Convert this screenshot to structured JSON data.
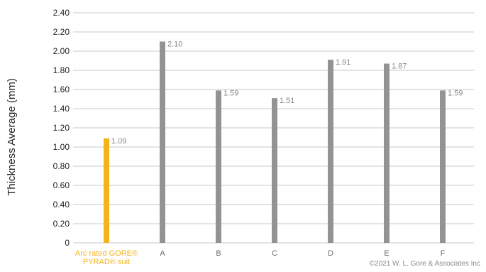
{
  "chart_data": {
    "type": "bar",
    "title": "",
    "ylabel": "Thickness Average (mm)",
    "xlabel": "",
    "ylim": [
      0,
      2.4
    ],
    "yticks": [
      "0",
      "0.20",
      "0.40",
      "0.60",
      "0.80",
      "1.00",
      "1.20",
      "1.40",
      "1.60",
      "1.80",
      "2.00",
      "2.20",
      "2.40"
    ],
    "grid": "horizontal",
    "categories": [
      [
        "Arc rated GORE®",
        "PYRAD® suit"
      ],
      [
        "A"
      ],
      [
        "B"
      ],
      [
        "C"
      ],
      [
        "D"
      ],
      [
        "E"
      ],
      [
        "F"
      ]
    ],
    "values": [
      1.09,
      2.1,
      1.59,
      1.51,
      1.91,
      1.87,
      1.59
    ],
    "value_labels": [
      "1.09",
      "2.10",
      "1.59",
      "1.51",
      "1.91",
      "1.87",
      "1.59"
    ],
    "colors": [
      "#f5b21a",
      "#939393",
      "#939393",
      "#939393",
      "#939393",
      "#939393",
      "#939393"
    ]
  },
  "colors": {
    "highlight": "#f5b21a",
    "bar": "#939393",
    "grid": "#c8c8c8"
  },
  "footer": {
    "copyright": "©2021 W. L. Gore & Associates Inc"
  }
}
